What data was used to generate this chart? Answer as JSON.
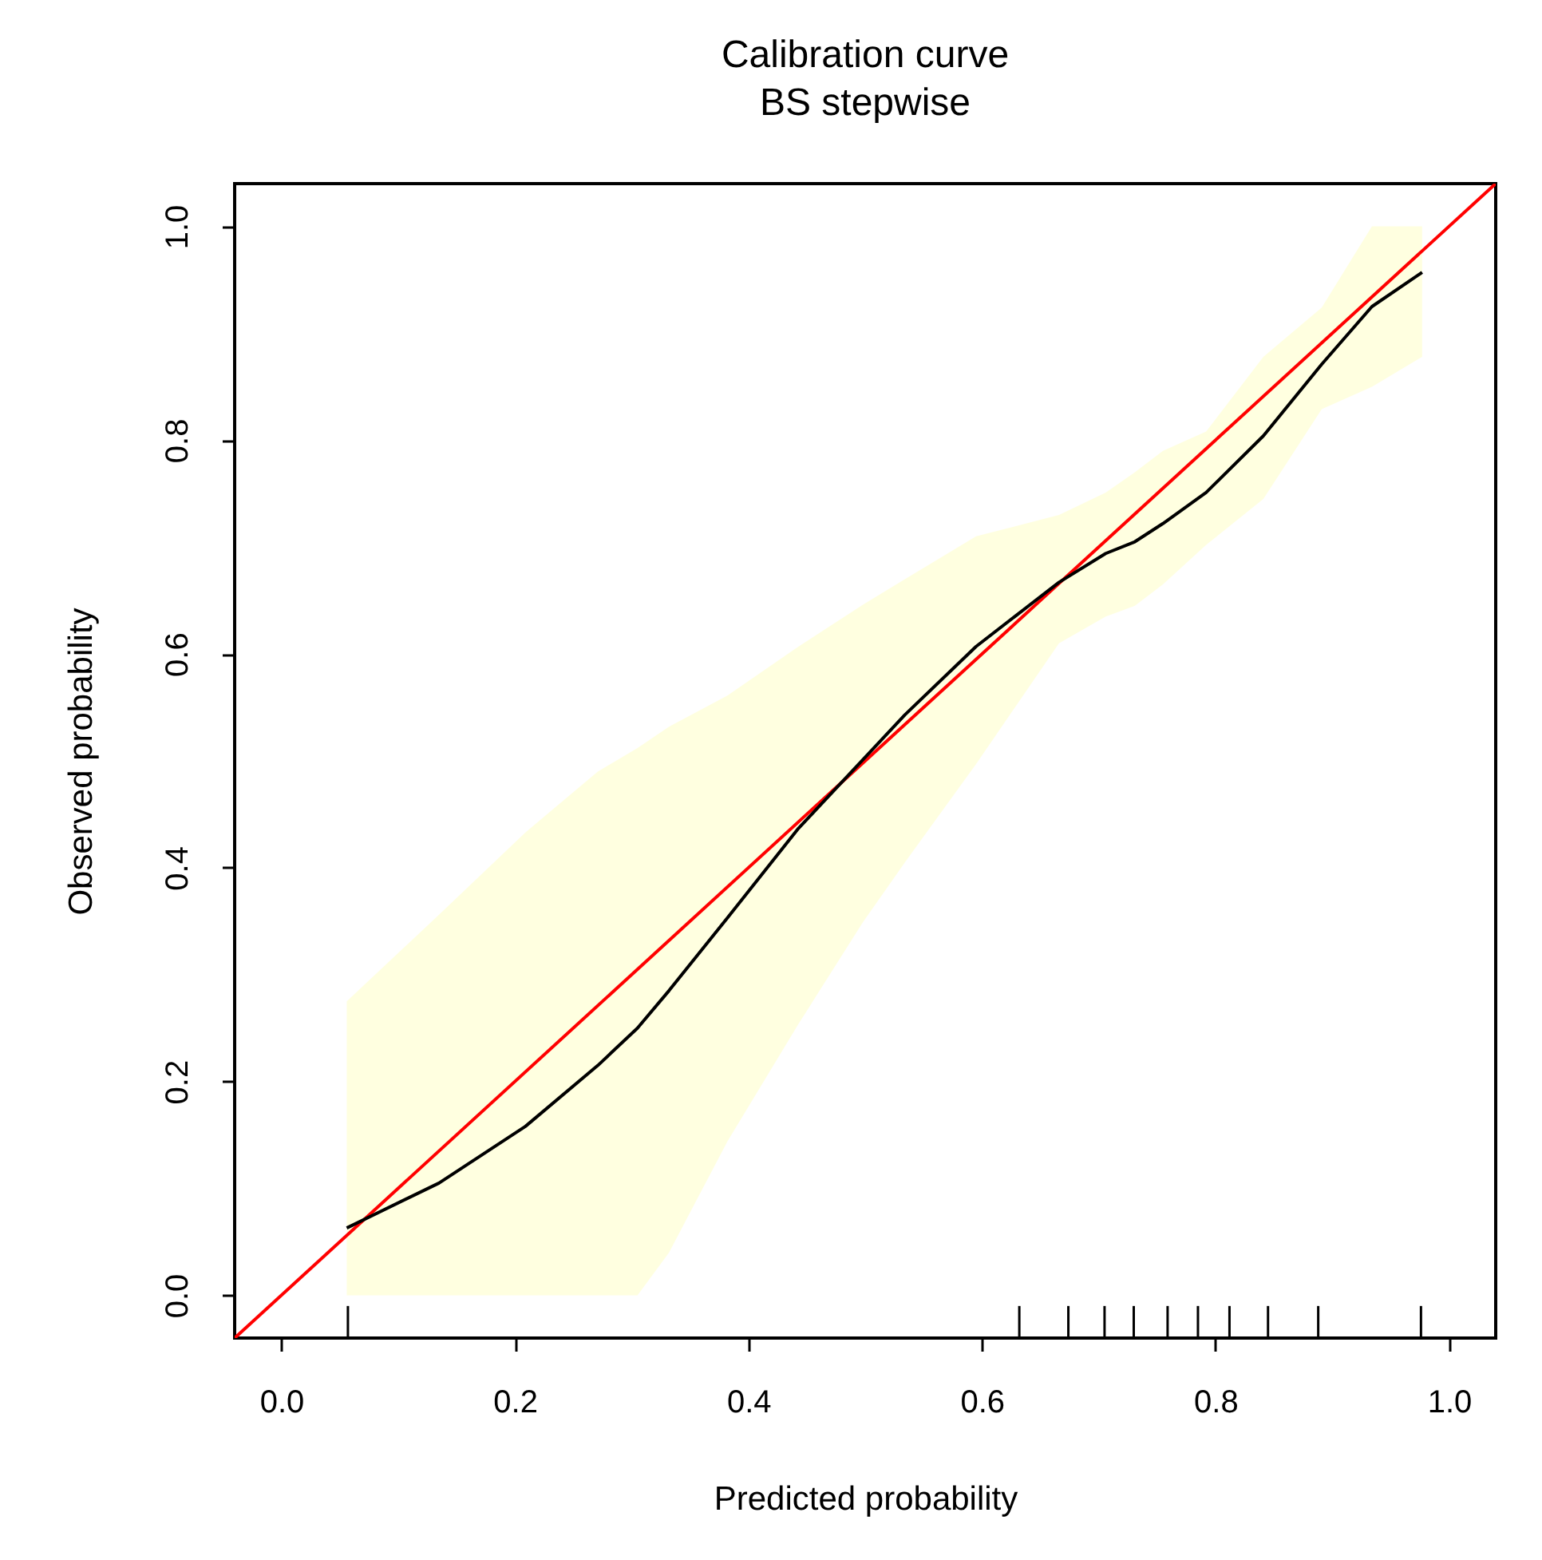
{
  "chart_data": {
    "type": "line",
    "title": "Calibration curve",
    "subtitle": "BS stepwise",
    "xlabel": "Predicted probability",
    "ylabel": "Observed probability",
    "xlim": [
      -0.04,
      1.04
    ],
    "ylim": [
      -0.04,
      1.04
    ],
    "xticks": [
      {
        "value": 0,
        "label": "0.0"
      },
      0.2,
      0.4,
      0.6,
      0.8,
      {
        "value": 1,
        "label": "1.0"
      }
    ],
    "yticks": [
      {
        "value": 0,
        "label": "0.0"
      },
      0.2,
      0.4,
      0.6,
      0.8,
      {
        "value": 1,
        "label": "1.0"
      }
    ],
    "series": [
      {
        "color": "#000000",
        "x": [
          0.056,
          0.135,
          0.209,
          0.271,
          0.305,
          0.332,
          0.382,
          0.443,
          0.498,
          0.534,
          0.595,
          0.666,
          0.706,
          0.731,
          0.755,
          0.792,
          0.841,
          0.891,
          0.934,
          0.977
        ],
        "values": [
          0.063,
          0.105,
          0.158,
          0.215,
          0.25,
          0.285,
          0.353,
          0.437,
          0.501,
          0.543,
          0.607,
          0.667,
          0.694,
          0.705,
          0.722,
          0.751,
          0.804,
          0.871,
          0.925,
          0.957
        ],
        "lower": [
          0,
          0,
          0,
          0,
          0,
          0.04,
          0.144,
          0.254,
          0.349,
          0.405,
          0.497,
          0.61,
          0.635,
          0.645,
          0.665,
          0.702,
          0.745,
          0.829,
          0.85,
          0.878
        ],
        "upper": [
          0.275,
          0.356,
          0.433,
          0.49,
          0.512,
          0.532,
          0.561,
          0.607,
          0.646,
          0.67,
          0.71,
          0.73,
          0.751,
          0.77,
          0.79,
          0.808,
          0.878,
          0.924,
          1.0,
          1.0
        ]
      },
      {
        "color": "#ff0000",
        "x": [
          -0.04,
          1.04
        ],
        "values": [
          -0.04,
          1.04
        ]
      },
      {
        "type": "bar",
        "color": "#000000",
        "x": [
          0.057,
          0.632,
          0.674,
          0.705,
          0.73,
          0.759,
          0.785,
          0.812,
          0.845,
          0.888,
          0.976
        ],
        "values": [
          0.03,
          0.03,
          0.03,
          0.03,
          0.03,
          0.03,
          0.03,
          0.03,
          0.03,
          0.03,
          0.03
        ],
        "base": [
          -0.04,
          -0.04,
          -0.04,
          -0.04,
          -0.04,
          -0.04,
          -0.04,
          -0.04,
          -0.04,
          -0.04,
          -0.04
        ]
      }
    ]
  }
}
